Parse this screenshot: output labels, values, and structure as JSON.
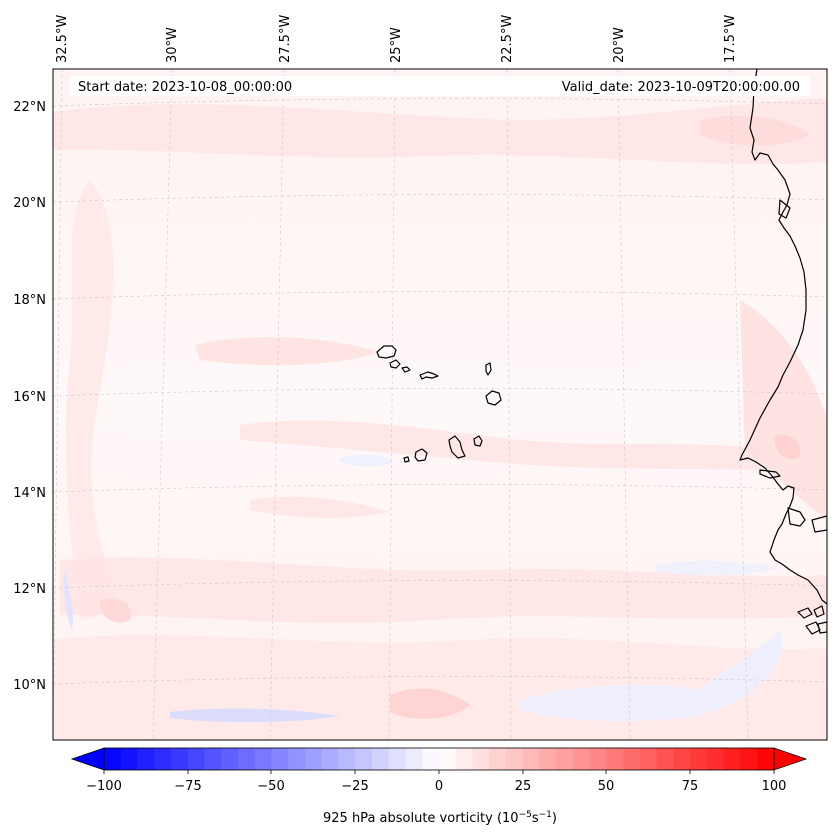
{
  "map": {
    "header": {
      "start_date": "Start date: 2023-10-08_00:00:00",
      "valid_date": "Valid_date: 2023-10-09T20:00:00.00"
    },
    "lon_labels": [
      "32.5°W",
      "30°W",
      "27.5°W",
      "25°W",
      "22.5°W",
      "20°W",
      "17.5°W"
    ],
    "lat_labels": [
      "22°N",
      "20°N",
      "18°N",
      "16°N",
      "14°N",
      "12°N",
      "10°N"
    ],
    "gridlines": true
  },
  "colorbar": {
    "label_main": "925 hPa absolute vorticity (10",
    "label_exp1": "−5",
    "label_mid": "s",
    "label_exp2": "−1",
    "label_end": ")",
    "ticks": [
      "−100",
      "−75",
      "−50",
      "−25",
      "0",
      "25",
      "50",
      "75",
      "100"
    ],
    "vmin": -100,
    "vmax": 100,
    "step": 5,
    "colormap": "bwr",
    "extend": "both"
  },
  "colors": {
    "negative": "#0000ff",
    "neutral": "#ffffff",
    "positive": "#ff0000",
    "coastline": "#000000",
    "grid": "#c8c8c8"
  }
}
